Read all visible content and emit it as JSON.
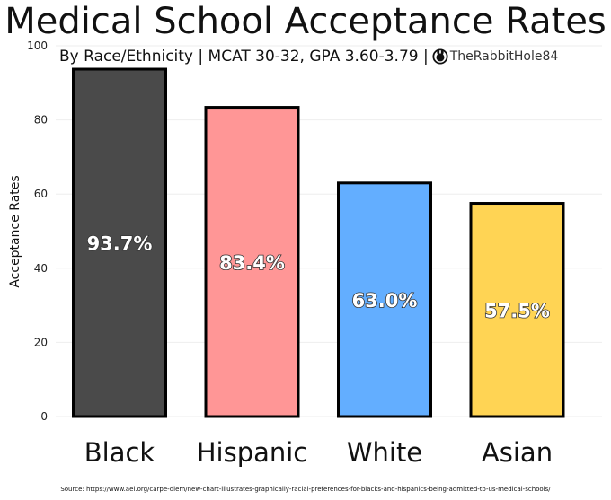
{
  "chart_data": {
    "type": "bar",
    "title": "Medical School Acceptance Rates",
    "subtitle": "By Race/Ethnicity | MCAT 30-32, GPA 3.60-3.79 |",
    "brand": "TheRabbitHole84",
    "ylabel": "Acceptance Rates",
    "xlabel": "",
    "ylim": [
      0,
      100
    ],
    "yticks": [
      0,
      20,
      40,
      60,
      80,
      100
    ],
    "grid": true,
    "categories": [
      "Black",
      "Hispanic",
      "White",
      "Asian"
    ],
    "values": [
      93.7,
      83.4,
      63.0,
      57.5
    ],
    "data_labels": [
      "93.7%",
      "83.4%",
      "63.0%",
      "57.5%"
    ],
    "colors": [
      "#4a4a4a",
      "#ff9696",
      "#63aeff",
      "#ffd454"
    ],
    "source": "Source: https://www.aei.org/carpe-diem/new-chart-illustrates-graphically-racial-preferences-for-blacks-and-hispanics-being-admitted-to-us-medical-schools/"
  }
}
